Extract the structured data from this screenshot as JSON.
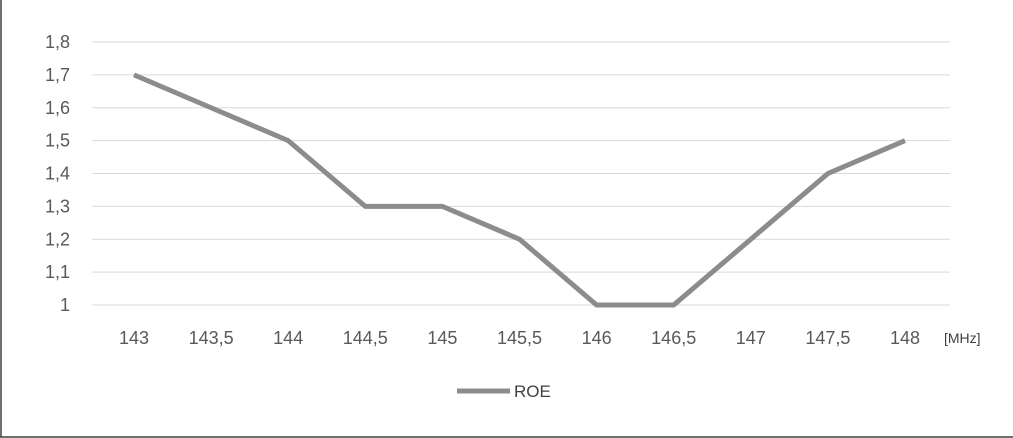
{
  "chart_data": {
    "type": "line",
    "title": "",
    "xlabel": "",
    "ylabel": "",
    "x_unit": "[MHz]",
    "categories": [
      "143",
      "143,5",
      "144",
      "144,5",
      "145",
      "145,5",
      "146",
      "146,5",
      "147",
      "147,5",
      "148"
    ],
    "series": [
      {
        "name": "ROE",
        "color": "#8c8c8c",
        "values": [
          1.7,
          1.6,
          1.5,
          1.3,
          1.3,
          1.2,
          1.0,
          1.0,
          1.2,
          1.4,
          1.5
        ]
      }
    ],
    "y_ticks": [
      "1",
      "1,1",
      "1,2",
      "1,3",
      "1,4",
      "1,5",
      "1,6",
      "1,7",
      "1,8"
    ],
    "ylim": [
      1,
      1.8
    ],
    "grid": true,
    "legend_position": "bottom",
    "colors": {
      "grid": "#d9d9d9",
      "line": "#8c8c8c",
      "frame": "#404040",
      "text": "#595959"
    }
  }
}
